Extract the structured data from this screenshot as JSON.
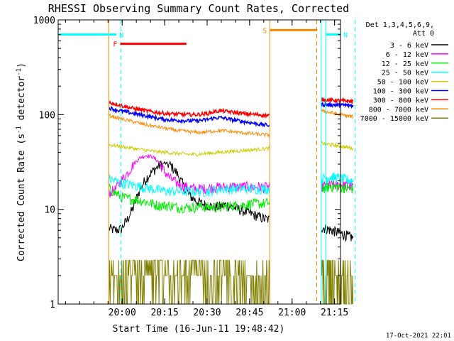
{
  "chart_data": {
    "type": "line",
    "title": "RHESSI Observing Summary Count Rates, Corrected",
    "xlabel": "Start Time (16-Jun-11 19:48:42)",
    "ylabel": "Corrected Count Rate (s",
    "ylabel_sup1": "-1",
    "ylabel_mid": " detector",
    "ylabel_sup2": "-1",
    "ylabel_end": ")",
    "yscale": "log",
    "ylim": [
      1,
      1000
    ],
    "xlim_minutes": [
      -11.3,
      88.4
    ],
    "x_unit": "minutes after 19:48:42",
    "yticks": [
      {
        "value": 1,
        "label": "1"
      },
      {
        "value": 10,
        "label": "10"
      },
      {
        "value": 100,
        "label": "100"
      },
      {
        "value": 1000,
        "label": "1000"
      }
    ],
    "xticks": [
      {
        "t": 11.3,
        "label": "20:00"
      },
      {
        "t": 26.3,
        "label": "20:15"
      },
      {
        "t": 41.3,
        "label": "20:30"
      },
      {
        "t": 56.3,
        "label": "20:45"
      },
      {
        "t": 71.3,
        "label": "21:00"
      },
      {
        "t": 86.3,
        "label": "21:15"
      }
    ],
    "legend_header": [
      "Det 1,3,4,5,6,9,",
      "Att 0"
    ],
    "legend_position": "top-right",
    "footer_date": "17-Oct-2021 22:01",
    "segments": [
      [
        6.6,
        63.4
      ],
      [
        81.6,
        92.8
      ]
    ],
    "series": [
      {
        "name": "3 - 6 keV",
        "color": "#000000",
        "s1": [
          6.3,
          6.0,
          6.2,
          7.8,
          10.5,
          16.0,
          21.0,
          25.0,
          28.5,
          31.0,
          29.0,
          24.0,
          18.0,
          14.0,
          12.5,
          11.5,
          11.0,
          10.5,
          10.8,
          11.2,
          10.5,
          10.0,
          9.5,
          9.0,
          8.5,
          8.0,
          7.8
        ],
        "s2": [
          6.5,
          6.0,
          5.5,
          5.0
        ]
      },
      {
        "name": "6 - 12 keV",
        "color": "#ff00ff",
        "s1": [
          15.0,
          16.0,
          20.0,
          24.0,
          30.0,
          35.0,
          37.0,
          36.0,
          32.0,
          25.0,
          21.0,
          19.0,
          17.5,
          17.0,
          16.5,
          16.5,
          16.8,
          17.0,
          17.2,
          17.0,
          17.5,
          17.0,
          17.5,
          17.0,
          17.5,
          17.0,
          17.5
        ],
        "s2": [
          17.5,
          18.0,
          18.0,
          17.5
        ]
      },
      {
        "name": "12 - 25 keV",
        "color": "#00ee00",
        "s1": [
          16.5,
          15.0,
          13.5,
          13.0,
          12.8,
          12.5,
          12.0,
          11.5,
          11.0,
          11.0,
          11.0,
          10.5,
          10.5,
          10.5,
          10.5,
          10.8,
          10.5,
          10.5,
          10.5,
          10.8,
          11.0,
          11.0,
          11.2,
          11.5,
          11.5,
          11.5,
          11.8
        ],
        "s2": [
          16.5,
          17.5,
          17.0,
          16.5
        ]
      },
      {
        "name": "25 - 50 keV",
        "color": "#00ffff",
        "s1": [
          21.0,
          20.0,
          19.0,
          18.5,
          18.0,
          17.5,
          17.0,
          16.5,
          16.0,
          15.8,
          15.5,
          15.5,
          15.5,
          15.5,
          15.5,
          15.5,
          15.5,
          16.0,
          16.5,
          16.5,
          16.5,
          16.5,
          16.5,
          16.5,
          16.5,
          16.5,
          16.5
        ],
        "s2": [
          21.0,
          22.0,
          21.0,
          20.0
        ]
      },
      {
        "name": "50 - 100 keV",
        "color": "#cccc00",
        "s1": [
          48.0,
          47.0,
          46.0,
          45.0,
          44.0,
          43.0,
          42.0,
          41.0,
          40.5,
          40.0,
          39.5,
          39.0,
          38.5,
          38.0,
          38.0,
          38.5,
          39.0,
          39.5,
          40.0,
          40.5,
          41.0,
          41.5,
          42.0,
          42.5,
          43.0,
          43.5,
          44.0
        ],
        "s2": [
          50.0,
          48.0,
          46.0,
          44.0
        ]
      },
      {
        "name": "100 - 300 keV",
        "color": "#0000ff",
        "s1": [
          118.0,
          113.0,
          109.0,
          106.0,
          103.0,
          100.0,
          97.0,
          94.0,
          91.0,
          89.0,
          88.0,
          87.0,
          86.5,
          86.0,
          86.0,
          87.0,
          89.0,
          92.0,
          93.0,
          91.0,
          88.0,
          86.0,
          84.0,
          82.0,
          80.0,
          78.0,
          77.0
        ],
        "s2": [
          128.0,
          127.0,
          126.0,
          125.0
        ]
      },
      {
        "name": "300 - 800 keV",
        "color": "#ff0000",
        "s1": [
          135.0,
          130.0,
          125.0,
          120.0,
          116.0,
          113.0,
          110.0,
          107.0,
          105.0,
          103.0,
          102.0,
          101.0,
          100.5,
          100.0,
          100.0,
          101.0,
          103.0,
          107.0,
          110.0,
          108.0,
          106.0,
          104.0,
          102.0,
          101.0,
          100.0,
          99.0,
          98.0
        ],
        "s2": [
          145.0,
          142.0,
          140.0,
          138.0
        ]
      },
      {
        "name": "800 - 7000 keV",
        "color": "#ff8800",
        "s1": [
          98.0,
          94.0,
          90.0,
          87.0,
          84.0,
          81.0,
          78.0,
          76.0,
          74.0,
          72.0,
          70.0,
          68.0,
          67.0,
          66.0,
          65.0,
          65.0,
          66.0,
          67.0,
          68.0,
          67.0,
          66.0,
          65.0,
          64.0,
          63.0,
          62.0,
          61.5,
          61.0
        ],
        "s2": [
          110.0,
          104.0,
          99.0,
          95.0
        ]
      },
      {
        "name": "7000 - 15000 keV",
        "color": "#808000",
        "s1": [
          2.9,
          2.0,
          2.0,
          2.0,
          2.0,
          2.0,
          2.0,
          2.0,
          2.0,
          2.0,
          2.0,
          2.0,
          2.0,
          2.0,
          2.0,
          2.0,
          2.0,
          2.0,
          2.0,
          2.0,
          2.0,
          2.0,
          2.9,
          2.9,
          2.9,
          2.9,
          2.9
        ],
        "s2": [
          2.9,
          2.9,
          2.0,
          2.0
        ]
      }
    ],
    "flags": [
      {
        "label": "N",
        "color": "#00ffff",
        "t0": -11.3,
        "t1": 9.3,
        "level": 700
      },
      {
        "label": "N",
        "color": "#00ffff",
        "t0": 83.3,
        "t1": 88.4,
        "level": 700
      },
      {
        "label": "F",
        "color": "#ff0000",
        "t0": 10.6,
        "t1": 34.0,
        "level": 560
      },
      {
        "label": "S",
        "color": "#ff8800",
        "t0": 63.4,
        "t1": 80.0,
        "level": 780
      }
    ],
    "boundaries": [
      {
        "t": 6.6,
        "color": "#ff8800",
        "style": "solid"
      },
      {
        "t": 10.8,
        "color": "#00ffff",
        "style": "dashed"
      },
      {
        "t": 63.4,
        "color": "#ff8800",
        "style": "solid"
      },
      {
        "t": 80.0,
        "color": "#ff8800",
        "style": "dashed"
      },
      {
        "t": 81.6,
        "color": "#00ffff",
        "style": "solid"
      },
      {
        "t": 83.3,
        "color": "#00ffff",
        "style": "solid"
      },
      {
        "t": 93.5,
        "color": "#00ffff",
        "style": "dashed"
      }
    ]
  }
}
